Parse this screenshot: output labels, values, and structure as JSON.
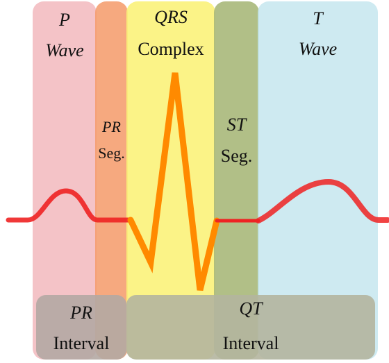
{
  "segments": {
    "p_wave": {
      "line1": "P",
      "line2": "Wave",
      "color": "#f2b8bd"
    },
    "pr_segment": {
      "line1": "PR",
      "line2": "Seg.",
      "color": "#f59a68"
    },
    "qrs_complex": {
      "line1": "QRS",
      "line2": "Complex",
      "color": "#fbf27a"
    },
    "st_segment": {
      "line1": "ST",
      "line2": "Seg.",
      "color": "#a9b87a"
    },
    "t_wave": {
      "line1": "T",
      "line2": "Wave",
      "color": "#c6e6ef"
    }
  },
  "intervals": {
    "pr_interval": {
      "line1": "PR",
      "line2": "Interval",
      "color": "#b4a9a3"
    },
    "qt_interval": {
      "line1": "QT",
      "line2": "Interval",
      "color": "#b4b59f"
    }
  },
  "trace": {
    "baseline_color": "#ee2222",
    "qrs_color": "#ff8a00"
  }
}
